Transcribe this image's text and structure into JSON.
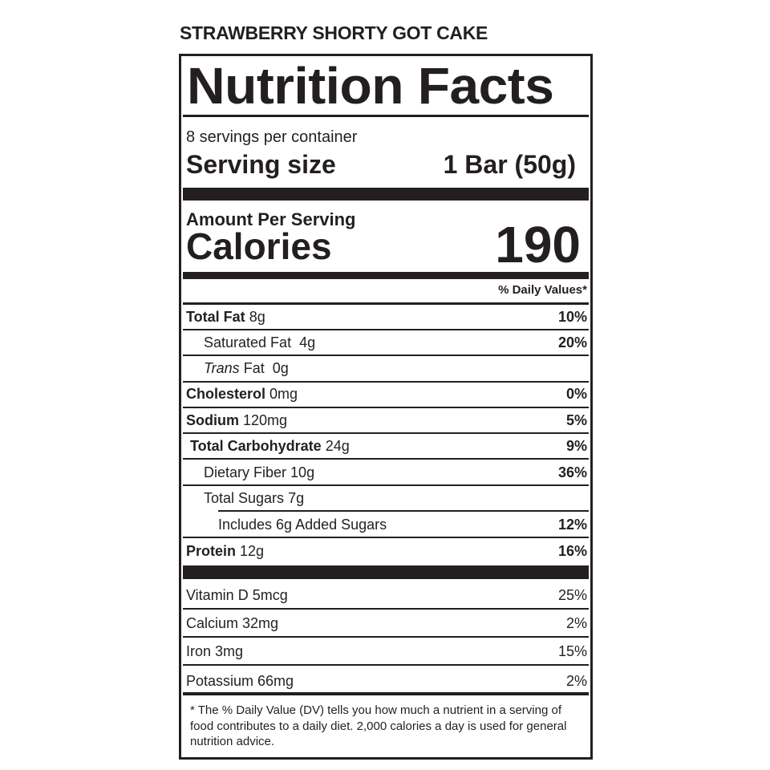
{
  "product_name": "STRAWBERRY SHORTY GOT CAKE",
  "label": {
    "title": "Nutrition Facts",
    "servings_per_container": "8 servings per container",
    "serving_size_label": "Serving size",
    "serving_size_value": "1 Bar (50g)",
    "amount_per_serving": "Amount Per Serving",
    "calories_label": "Calories",
    "calories_value": "190",
    "dv_header": "% Daily Values*",
    "nutrients": [
      {
        "name": "Total Fat",
        "amount": "8g",
        "dv": "10%"
      },
      {
        "name": "Saturated Fat",
        "amount": "4g",
        "dv": "20%"
      },
      {
        "name": "Trans",
        "name_rest": "Fat",
        "amount": "0g"
      },
      {
        "name": "Cholesterol",
        "amount": "0mg",
        "dv": "0%"
      },
      {
        "name": "Sodium",
        "amount": "120mg",
        "dv": "5%"
      },
      {
        "name": "Total Carbohydrate",
        "amount": "24g",
        "dv": "9%"
      },
      {
        "name": "Dietary Fiber",
        "amount": "10g",
        "dv": "36%"
      },
      {
        "name": "Total Sugars",
        "amount": "7g"
      },
      {
        "name": "Includes 6g Added Sugars",
        "dv": "12%"
      },
      {
        "name": "Protein",
        "amount": "12g",
        "dv": "16%"
      }
    ],
    "vitamins": [
      {
        "name": "Vitamin D 5mcg",
        "dv": "25%"
      },
      {
        "name": "Calcium 32mg",
        "dv": "2%"
      },
      {
        "name": "Iron 3mg",
        "dv": "15%"
      },
      {
        "name": "Potassium 66mg",
        "dv": "2%"
      }
    ],
    "footnote": "* The % Daily Value (DV) tells you how much a nutrient in a serving of food contributes to a daily diet. 2,000 calories a day is used for general nutrition advice."
  }
}
